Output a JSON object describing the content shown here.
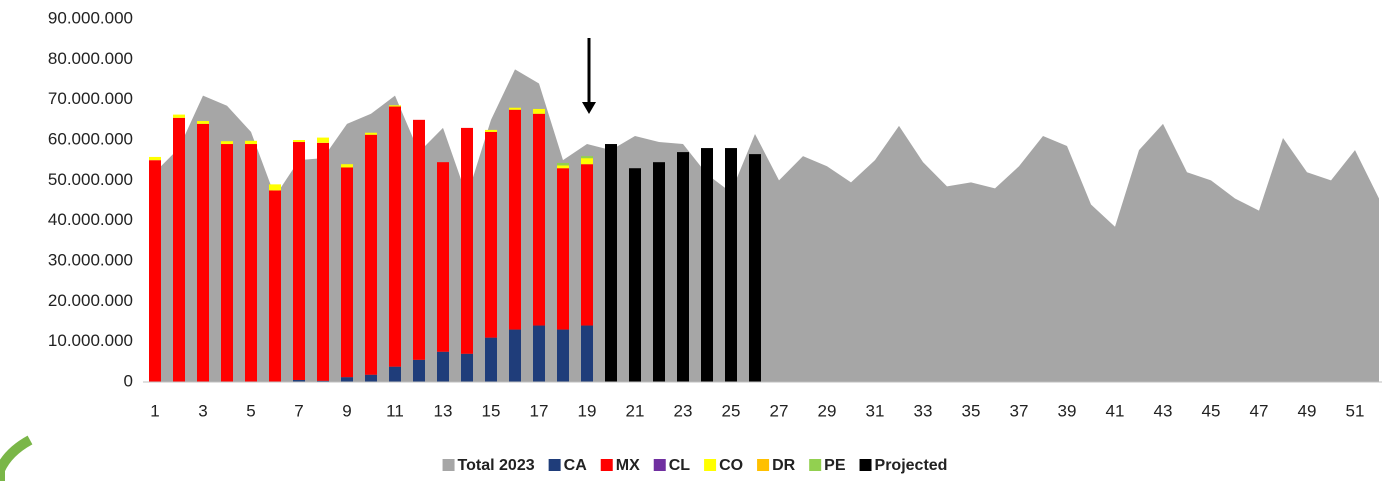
{
  "chart_data": {
    "type": "bar",
    "categories": [
      1,
      null,
      3,
      null,
      5,
      null,
      7,
      null,
      9,
      null,
      11,
      null,
      13,
      null,
      15,
      null,
      17,
      null,
      19,
      null,
      21,
      null,
      23,
      null,
      25,
      null,
      27,
      null,
      29,
      null,
      31,
      null,
      33,
      null,
      35,
      null,
      37,
      null,
      39,
      null,
      41,
      null,
      43,
      null,
      45,
      null,
      47,
      null,
      49,
      null,
      51,
      null
    ],
    "ylim": [
      0,
      90000000
    ],
    "yticks": [
      0,
      {
        "value": 10000000,
        "label": "10.000.000"
      },
      {
        "value": 20000000,
        "label": "20.000.000"
      },
      {
        "value": 30000000,
        "label": "30.000.000"
      },
      {
        "value": 40000000,
        "label": "40.000.000"
      },
      {
        "value": 50000000,
        "label": "50.000.000"
      },
      {
        "value": 60000000,
        "label": "60.000.000"
      },
      {
        "value": 70000000,
        "label": "70.000.000"
      },
      {
        "value": 80000000,
        "label": "80.000.000"
      },
      {
        "value": 90000000,
        "label": "90.000.000"
      }
    ],
    "legend": "bottom",
    "series": [
      {
        "name": "Total 2023",
        "type": "area",
        "color": "#a6a6a6",
        "values": [
          52000000,
          58000000,
          71000000,
          68500000,
          62000000,
          46000000,
          55000000,
          55500000,
          64000000,
          66500000,
          71000000,
          57000000,
          63000000,
          46000000,
          65000000,
          77500000,
          74000000,
          55000000,
          59000000,
          57500000,
          61000000,
          59500000,
          59000000,
          51500000,
          47000000,
          61500000,
          50000000,
          56000000,
          53500000,
          49500000,
          55000000,
          63500000,
          54500000,
          48500000,
          49500000,
          48000000,
          53500000,
          61000000,
          58500000,
          44000000,
          38500000,
          57500000,
          64000000,
          52000000,
          50000000,
          45500000,
          42500000,
          60500000,
          52000000,
          50000000,
          57500000,
          45500000
        ]
      },
      {
        "name": "CA",
        "color": "#1f3d7a",
        "values": [
          0,
          0,
          0,
          0,
          0,
          0,
          500000,
          300000,
          1200000,
          1800000,
          3800000,
          5500000,
          7500000,
          7000000,
          11000000,
          13000000,
          14000000,
          13000000,
          14000000,
          null,
          null,
          null,
          null,
          null,
          null,
          null,
          null,
          null,
          null,
          null,
          null,
          null,
          null,
          null,
          null,
          null,
          null,
          null,
          null,
          null,
          null,
          null,
          null,
          null,
          null,
          null,
          null,
          null,
          null,
          null,
          null,
          null
        ]
      },
      {
        "name": "MX",
        "color": "#ff0000",
        "values": [
          55000000,
          65500000,
          64000000,
          59000000,
          59000000,
          47500000,
          59000000,
          59000000,
          52000000,
          59500000,
          64500000,
          59500000,
          47000000,
          56000000,
          51000000,
          54500000,
          52500000,
          40000000,
          40000000,
          null,
          null,
          null,
          null,
          null,
          null,
          null,
          null,
          null,
          null,
          null,
          null,
          null,
          null,
          null,
          null,
          null,
          null,
          null,
          null,
          null,
          null,
          null,
          null,
          null,
          null,
          null,
          null,
          null,
          null,
          null,
          null,
          null
        ]
      },
      {
        "name": "CL",
        "color": "#7030a0",
        "values": [
          0,
          0,
          0,
          0,
          0,
          0,
          0,
          0,
          0,
          0,
          0,
          0,
          0,
          0,
          0,
          0,
          0,
          0,
          0,
          null,
          null,
          null,
          null,
          null,
          null,
          null,
          null,
          null,
          null,
          null,
          null,
          null,
          null,
          null,
          null,
          null,
          null,
          null,
          null,
          null,
          null,
          null,
          null,
          null,
          null,
          null,
          null,
          null,
          null,
          null,
          null,
          null
        ]
      },
      {
        "name": "CO",
        "color": "#ffff00",
        "values": [
          800000,
          800000,
          700000,
          700000,
          800000,
          1500000,
          500000,
          1300000,
          800000,
          500000,
          300000,
          0,
          0,
          0,
          500000,
          500000,
          1200000,
          700000,
          1500000,
          null,
          null,
          null,
          null,
          null,
          null,
          null,
          null,
          null,
          null,
          null,
          null,
          null,
          null,
          null,
          null,
          null,
          null,
          null,
          null,
          null,
          null,
          null,
          null,
          null,
          null,
          null,
          null,
          null,
          null,
          null,
          null,
          null
        ]
      },
      {
        "name": "DR",
        "color": "#ffc000",
        "values": [
          0,
          0,
          0,
          0,
          0,
          0,
          0,
          0,
          0,
          0,
          0,
          0,
          0,
          0,
          0,
          0,
          0,
          0,
          0,
          null,
          null,
          null,
          null,
          null,
          null,
          null,
          null,
          null,
          null,
          null,
          null,
          null,
          null,
          null,
          null,
          null,
          null,
          null,
          null,
          null,
          null,
          null,
          null,
          null,
          null,
          null,
          null,
          null,
          null,
          null,
          null,
          null
        ]
      },
      {
        "name": "PE",
        "color": "#92d050",
        "values": [
          0,
          0,
          0,
          0,
          0,
          0,
          0,
          0,
          0,
          0,
          0,
          0,
          0,
          0,
          0,
          0,
          0,
          600000,
          500000,
          null,
          null,
          null,
          null,
          null,
          null,
          null,
          null,
          null,
          null,
          null,
          null,
          null,
          null,
          null,
          null,
          null,
          null,
          null,
          null,
          null,
          null,
          null,
          null,
          null,
          null,
          null,
          null,
          null,
          null,
          null,
          null,
          null
        ]
      },
      {
        "name": "Projected",
        "color": "#000000",
        "values": [
          null,
          null,
          null,
          null,
          null,
          null,
          null,
          null,
          null,
          null,
          null,
          null,
          null,
          null,
          null,
          null,
          null,
          null,
          null,
          59000000,
          53000000,
          54500000,
          57000000,
          58000000,
          58000000,
          56500000,
          null,
          null,
          null,
          null,
          null,
          null,
          null,
          null,
          null,
          null,
          null,
          null,
          null,
          null,
          null,
          null,
          null,
          null,
          null,
          null,
          null,
          null,
          null,
          null,
          null,
          null
        ]
      }
    ]
  }
}
